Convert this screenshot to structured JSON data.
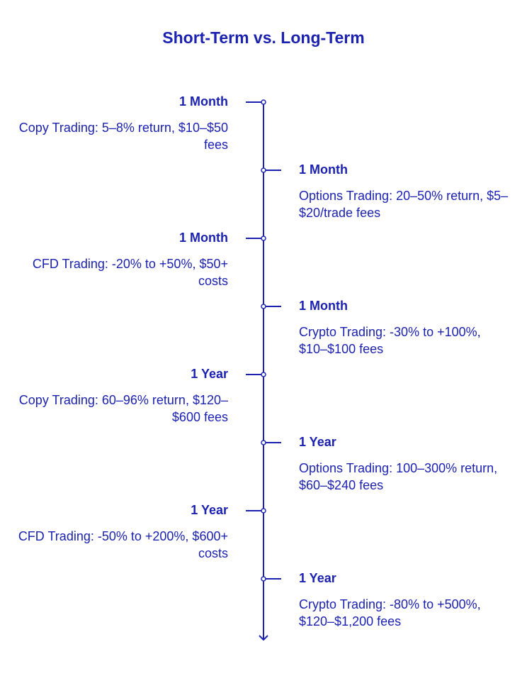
{
  "title": "Short-Term vs. Long-Term",
  "colors": {
    "accent": "#1c22b0",
    "background": "#ffffff"
  },
  "timeline": {
    "items": [
      {
        "side": "left",
        "label": "1 Month",
        "text": "Copy Trading: 5–8% return, $10–$50 fees"
      },
      {
        "side": "right",
        "label": "1 Month",
        "text": "Options Trading: 20–50% return, $5–$20/trade fees"
      },
      {
        "side": "left",
        "label": "1 Month",
        "text": "CFD Trading: -20% to +50%, $50+ costs"
      },
      {
        "side": "right",
        "label": "1 Month",
        "text": "Crypto Trading: -30% to +100%, $10–$100 fees"
      },
      {
        "side": "left",
        "label": "1 Year",
        "text": "Copy Trading: 60–96% return, $120–$600 fees"
      },
      {
        "side": "right",
        "label": "1 Year",
        "text": "Options Trading: 100–300% return, $60–$240 fees"
      },
      {
        "side": "left",
        "label": "1 Year",
        "text": "CFD Trading: -50% to +200%, $600+ costs"
      },
      {
        "side": "right",
        "label": "1 Year",
        "text": "Crypto Trading: -80% to +500%, $120–$1,200 fees"
      }
    ]
  }
}
